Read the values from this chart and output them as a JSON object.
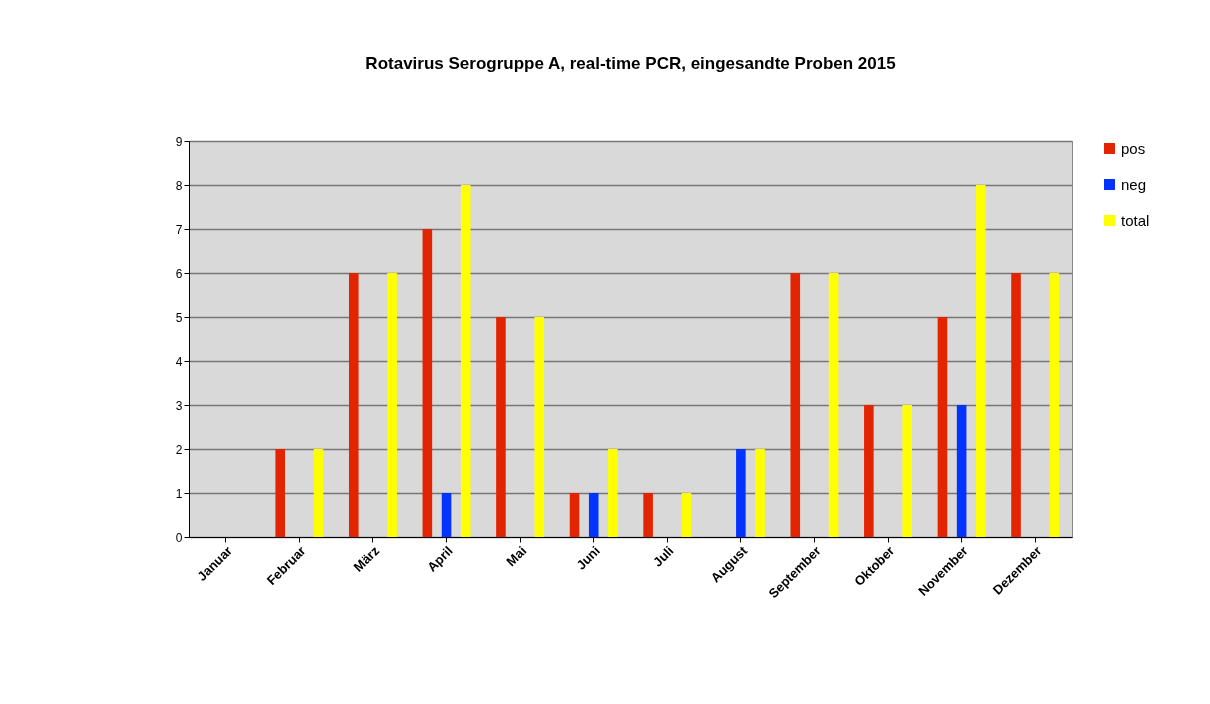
{
  "chart_data": {
    "type": "bar",
    "title": "Rotavirus Serogruppe A, real-time PCR, eingesandte Proben 2015",
    "categories": [
      "Januar",
      "Februar",
      "März",
      "April",
      "Mai",
      "Juni",
      "Juli",
      "August",
      "September",
      "Oktober",
      "November",
      "Dezember"
    ],
    "series": [
      {
        "name": "pos",
        "color": "#e32400",
        "values": [
          0,
          2,
          6,
          7,
          5,
          1,
          1,
          0,
          6,
          3,
          5,
          6
        ]
      },
      {
        "name": "neg",
        "color": "#0433ff",
        "values": [
          0,
          0,
          0,
          1,
          0,
          1,
          0,
          2,
          0,
          0,
          3,
          0
        ]
      },
      {
        "name": "total",
        "color": "#ffff00",
        "values": [
          0,
          2,
          6,
          8,
          5,
          2,
          1,
          2,
          6,
          3,
          8,
          6
        ]
      }
    ],
    "ylim": [
      0,
      9
    ],
    "yticks": [
      0,
      1,
      2,
      3,
      4,
      5,
      6,
      7,
      8,
      9
    ],
    "grid": "y",
    "legend": "right"
  }
}
